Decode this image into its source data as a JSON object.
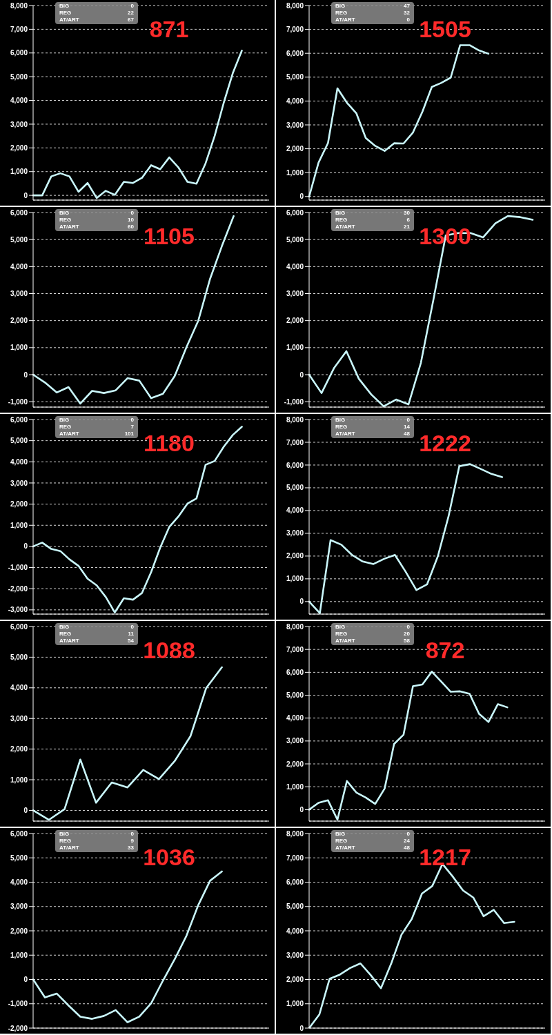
{
  "chart_data": [
    {
      "type": "line",
      "categories": [
        null,
        null,
        null,
        null,
        null,
        null,
        null,
        null,
        null,
        null,
        null,
        null,
        null,
        null,
        null,
        null,
        null,
        null,
        null,
        null,
        null,
        null,
        null,
        null,
        null,
        null,
        null
      ],
      "values": [
        0,
        0,
        800,
        930,
        800,
        150,
        520,
        -110,
        190,
        20,
        570,
        520,
        740,
        1270,
        1100,
        1600,
        1180,
        570,
        490,
        1350,
        2500,
        3900,
        5150,
        6100,
        null,
        null,
        null
      ],
      "color": "#c9f6fa",
      "ylim": [
        -200,
        8000
      ],
      "yticks": [
        {
          "value": 0,
          "label": "0"
        },
        {
          "value": 1000,
          "label": "1,000"
        },
        {
          "value": 2000,
          "label": "2,000"
        },
        {
          "value": 3000,
          "label": "3,000"
        },
        {
          "value": 4000,
          "label": "4,000"
        },
        {
          "value": 5000,
          "label": "5,000"
        },
        {
          "value": 6000,
          "label": "6,000"
        },
        {
          "value": 7000,
          "label": "7,000"
        },
        {
          "value": 8000,
          "label": "8,000"
        }
      ],
      "grid": "y",
      "marker": "none",
      "line_style": "solid",
      "tick_labels": "y",
      "annotations": [
        "BIG",
        "0",
        "REG",
        "22",
        "AT/ART",
        "67",
        "871"
      ]
    },
    {
      "type": "line",
      "categories": [
        null,
        null,
        null,
        null,
        null,
        null,
        null,
        null,
        null,
        null,
        null,
        null,
        null,
        null,
        null,
        null,
        null,
        null,
        null,
        null,
        null,
        null,
        null,
        null,
        null,
        null
      ],
      "values": [
        0,
        1420,
        2240,
        4530,
        3930,
        3490,
        2450,
        2120,
        1910,
        2230,
        2220,
        2680,
        3550,
        4590,
        4760,
        4980,
        6340,
        6340,
        6120,
        5980,
        null,
        null,
        null,
        null,
        null,
        null
      ],
      "color": "#c9f6fa",
      "ylim": [
        -150,
        8000
      ],
      "yticks": [
        {
          "value": 0,
          "label": "0"
        },
        {
          "value": 1000,
          "label": "1,000"
        },
        {
          "value": 2000,
          "label": "2,000"
        },
        {
          "value": 3000,
          "label": "3,000"
        },
        {
          "value": 4000,
          "label": "4,000"
        },
        {
          "value": 5000,
          "label": "5,000"
        },
        {
          "value": 6000,
          "label": "6,000"
        },
        {
          "value": 7000,
          "label": "7,000"
        },
        {
          "value": 8000,
          "label": "8,000"
        }
      ],
      "grid": "y",
      "marker": "none",
      "line_style": "solid",
      "tick_labels": "y",
      "annotations": [
        "BIG",
        "47",
        "REG",
        "32",
        "AT/ART",
        "0",
        "1505"
      ]
    },
    {
      "type": "line",
      "categories": [
        null,
        null,
        null,
        null,
        null,
        null,
        null,
        null,
        null,
        null,
        null,
        null,
        null,
        null,
        null,
        null,
        null,
        null,
        null,
        null,
        null
      ],
      "values": [
        0,
        -290,
        -660,
        -460,
        -1070,
        -600,
        -680,
        -580,
        -130,
        -220,
        -870,
        -710,
        -50,
        1020,
        2000,
        3550,
        4760,
        5870,
        null,
        null,
        null
      ],
      "color": "#c9f6fa",
      "ylim": [
        -1200,
        6000
      ],
      "yticks": [
        {
          "value": -1000,
          "label": "-1,000"
        },
        {
          "value": 0,
          "label": "0"
        },
        {
          "value": 1000,
          "label": "1,000"
        },
        {
          "value": 2000,
          "label": "2,000"
        },
        {
          "value": 3000,
          "label": "3,000"
        },
        {
          "value": 4000,
          "label": "4,000"
        },
        {
          "value": 5000,
          "label": "5,000"
        },
        {
          "value": 6000,
          "label": "6,000"
        }
      ],
      "grid": "y",
      "marker": "none",
      "line_style": "solid",
      "tick_labels": "y",
      "annotations": [
        "BIG",
        "0",
        "REG",
        "10",
        "AT/ART",
        "60",
        "1105"
      ]
    },
    {
      "type": "line",
      "categories": [
        null,
        null,
        null,
        null,
        null,
        null,
        null,
        null,
        null,
        null,
        null,
        null,
        null,
        null,
        null,
        null,
        null,
        null,
        null,
        null
      ],
      "values": [
        0,
        -680,
        240,
        870,
        -150,
        -730,
        -1170,
        -920,
        -1100,
        440,
        2760,
        5150,
        5240,
        5240,
        5080,
        5600,
        5870,
        5830,
        5730,
        null
      ],
      "color": "#c9f6fa",
      "ylim": [
        -1200,
        6000
      ],
      "yticks": [
        {
          "value": -1000,
          "label": "-1,000"
        },
        {
          "value": 0,
          "label": "0"
        },
        {
          "value": 1000,
          "label": "1,000"
        },
        {
          "value": 2000,
          "label": "2,000"
        },
        {
          "value": 3000,
          "label": "3,000"
        },
        {
          "value": 4000,
          "label": "4,000"
        },
        {
          "value": 5000,
          "label": "5,000"
        },
        {
          "value": 6000,
          "label": "6,000"
        }
      ],
      "grid": "y",
      "marker": "none",
      "line_style": "solid",
      "tick_labels": "y",
      "annotations": [
        "BIG",
        "30",
        "REG",
        "6",
        "AT/ART",
        "21",
        "1300"
      ]
    },
    {
      "type": "line",
      "categories": [
        null,
        null,
        null,
        null,
        null,
        null,
        null,
        null,
        null,
        null,
        null,
        null,
        null,
        null,
        null,
        null,
        null,
        null,
        null,
        null,
        null,
        null,
        null,
        null,
        null,
        null,
        null
      ],
      "values": [
        0,
        180,
        -120,
        -220,
        -610,
        -920,
        -1530,
        -1840,
        -2390,
        -3120,
        -2450,
        -2520,
        -2200,
        -1220,
        -60,
        920,
        1410,
        2020,
        2270,
        3860,
        4040,
        4710,
        5270,
        5660,
        null,
        null,
        null
      ],
      "color": "#c9f6fa",
      "ylim": [
        -3200,
        6000
      ],
      "yticks": [
        {
          "value": -3000,
          "label": "-3,000"
        },
        {
          "value": -2000,
          "label": "-2,000"
        },
        {
          "value": -1000,
          "label": "-1,000"
        },
        {
          "value": 0,
          "label": "0"
        },
        {
          "value": 1000,
          "label": "1,000"
        },
        {
          "value": 2000,
          "label": "2,000"
        },
        {
          "value": 3000,
          "label": "3,000"
        },
        {
          "value": 4000,
          "label": "4,000"
        },
        {
          "value": 5000,
          "label": "5,000"
        },
        {
          "value": 6000,
          "label": "6,000"
        }
      ],
      "grid": "y",
      "marker": "none",
      "line_style": "solid",
      "tick_labels": "y",
      "annotations": [
        "BIG",
        "0",
        "REG",
        "7",
        "AT/ART",
        "101",
        "1180"
      ]
    },
    {
      "type": "line",
      "categories": [
        null,
        null,
        null,
        null,
        null,
        null,
        null,
        null,
        null,
        null,
        null,
        null,
        null,
        null,
        null,
        null,
        null,
        null,
        null,
        null,
        null,
        null,
        null
      ],
      "values": [
        0,
        -510,
        2700,
        2500,
        2050,
        1760,
        1650,
        1880,
        2050,
        1310,
        510,
        760,
        1990,
        3750,
        5950,
        6040,
        5830,
        5610,
        5470,
        null,
        null,
        null,
        null
      ],
      "color": "#c9f6fa",
      "ylim": [
        -550,
        8000
      ],
      "yticks": [
        {
          "value": 0,
          "label": "0"
        },
        {
          "value": 1000,
          "label": "1,000"
        },
        {
          "value": 2000,
          "label": "2,000"
        },
        {
          "value": 3000,
          "label": "3,000"
        },
        {
          "value": 4000,
          "label": "4,000"
        },
        {
          "value": 5000,
          "label": "5,000"
        },
        {
          "value": 6000,
          "label": "6,000"
        },
        {
          "value": 7000,
          "label": "7,000"
        },
        {
          "value": 8000,
          "label": "8,000"
        }
      ],
      "grid": "y",
      "marker": "none",
      "line_style": "solid",
      "tick_labels": "y",
      "annotations": [
        "BIG",
        "0",
        "REG",
        "14",
        "AT/ART",
        "48",
        "1222"
      ]
    },
    {
      "type": "line",
      "categories": [
        null,
        null,
        null,
        null,
        null,
        null,
        null,
        null,
        null,
        null,
        null,
        null,
        null,
        null,
        null,
        null
      ],
      "values": [
        0,
        -310,
        40,
        1660,
        250,
        910,
        750,
        1320,
        1020,
        1610,
        2420,
        3990,
        4670,
        null,
        null,
        null
      ],
      "color": "#c9f6fa",
      "ylim": [
        -350,
        6000
      ],
      "yticks": [
        {
          "value": 0,
          "label": "0"
        },
        {
          "value": 1000,
          "label": "1,000"
        },
        {
          "value": 2000,
          "label": "2,000"
        },
        {
          "value": 3000,
          "label": "3,000"
        },
        {
          "value": 4000,
          "label": "4,000"
        },
        {
          "value": 5000,
          "label": "5,000"
        },
        {
          "value": 6000,
          "label": "6,000"
        }
      ],
      "grid": "y",
      "marker": "none",
      "line_style": "solid",
      "tick_labels": "y",
      "annotations": [
        "BIG",
        "0",
        "REG",
        "11",
        "AT/ART",
        "54",
        "1088"
      ]
    },
    {
      "type": "line",
      "categories": [
        null,
        null,
        null,
        null,
        null,
        null,
        null,
        null,
        null,
        null,
        null,
        null,
        null,
        null,
        null,
        null,
        null,
        null,
        null,
        null,
        null,
        null,
        null,
        null,
        null,
        null
      ],
      "values": [
        0,
        300,
        410,
        -440,
        1250,
        750,
        530,
        250,
        920,
        2870,
        3270,
        5390,
        5470,
        6030,
        5590,
        5150,
        5170,
        5060,
        4190,
        3830,
        4610,
        4470,
        null,
        null,
        null,
        null
      ],
      "color": "#c9f6fa",
      "ylim": [
        -500,
        8000
      ],
      "yticks": [
        {
          "value": 0,
          "label": "0"
        },
        {
          "value": 1000,
          "label": "1,000"
        },
        {
          "value": 2000,
          "label": "2,000"
        },
        {
          "value": 3000,
          "label": "3,000"
        },
        {
          "value": 4000,
          "label": "4,000"
        },
        {
          "value": 5000,
          "label": "5,000"
        },
        {
          "value": 6000,
          "label": "6,000"
        },
        {
          "value": 7000,
          "label": "7,000"
        },
        {
          "value": 8000,
          "label": "8,000"
        }
      ],
      "grid": "y",
      "marker": "none",
      "line_style": "solid",
      "tick_labels": "y",
      "annotations": [
        "BIG",
        "0",
        "REG",
        "20",
        "AT/ART",
        "58",
        "872"
      ]
    },
    {
      "type": "line",
      "categories": [
        null,
        null,
        null,
        null,
        null,
        null,
        null,
        null,
        null,
        null,
        null,
        null,
        null,
        null,
        null,
        null,
        null,
        null,
        null,
        null,
        null
      ],
      "values": [
        0,
        -740,
        -580,
        -1070,
        -1530,
        -1620,
        -1500,
        -1260,
        -1760,
        -1530,
        -980,
        -50,
        830,
        1800,
        3060,
        4060,
        4440,
        null,
        null,
        null,
        null
      ],
      "color": "#c9f6fa",
      "ylim": [
        -2000,
        6000
      ],
      "yticks": [
        {
          "value": -2000,
          "label": "-2,000"
        },
        {
          "value": -1000,
          "label": "-1,000"
        },
        {
          "value": 0,
          "label": "0"
        },
        {
          "value": 1000,
          "label": "1,000"
        },
        {
          "value": 2000,
          "label": "2,000"
        },
        {
          "value": 3000,
          "label": "3,000"
        },
        {
          "value": 4000,
          "label": "4,000"
        },
        {
          "value": 5000,
          "label": "5,000"
        },
        {
          "value": 6000,
          "label": "6,000"
        }
      ],
      "grid": "y",
      "marker": "none",
      "line_style": "solid",
      "tick_labels": "y",
      "annotations": [
        "BIG",
        "0",
        "REG",
        "9",
        "AT/ART",
        "33",
        "1036"
      ]
    },
    {
      "type": "line",
      "categories": [
        null,
        null,
        null,
        null,
        null,
        null,
        null,
        null,
        null,
        null,
        null,
        null,
        null,
        null,
        null,
        null,
        null,
        null,
        null,
        null,
        null,
        null,
        null,
        null
      ],
      "values": [
        0,
        560,
        2030,
        2200,
        2470,
        2660,
        2180,
        1640,
        2650,
        3840,
        4480,
        5530,
        5840,
        6750,
        6230,
        5660,
        5370,
        4600,
        4860,
        4320,
        4370,
        null,
        null,
        null
      ],
      "color": "#c9f6fa",
      "ylim": [
        0,
        8000
      ],
      "yticks": [
        {
          "value": 0,
          "label": "0"
        },
        {
          "value": 1000,
          "label": "1,000"
        },
        {
          "value": 2000,
          "label": "2,000"
        },
        {
          "value": 3000,
          "label": "3,000"
        },
        {
          "value": 4000,
          "label": "4,000"
        },
        {
          "value": 5000,
          "label": "5,000"
        },
        {
          "value": 6000,
          "label": "6,000"
        },
        {
          "value": 7000,
          "label": "7,000"
        },
        {
          "value": 8000,
          "label": "8,000"
        }
      ],
      "grid": "y",
      "marker": "none",
      "line_style": "solid",
      "tick_labels": "y",
      "annotations": [
        "BIG",
        "0",
        "REG",
        "24",
        "AT/ART",
        "48",
        "1217"
      ]
    }
  ]
}
